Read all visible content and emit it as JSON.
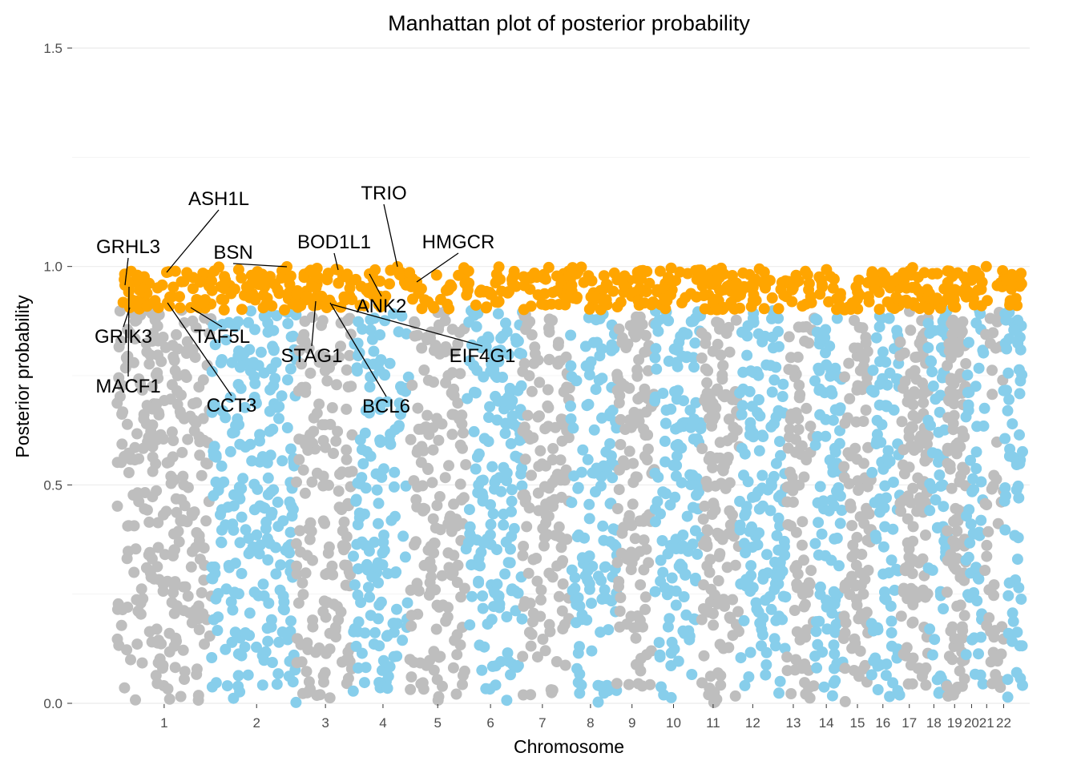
{
  "chart_data": {
    "type": "scatter",
    "title": "Manhattan plot of posterior probability",
    "xlabel": "Chromosome",
    "ylabel": "Posterior probability",
    "ylim": [
      0,
      1.5
    ],
    "yticks": [
      0.0,
      0.5,
      1.0,
      1.5
    ],
    "ytick_labels": [
      "0.0",
      "0.5",
      "1.0",
      "1.5"
    ],
    "grid": true,
    "legend": "none",
    "colors": {
      "odd": "#bebebe",
      "even": "#87ceeb",
      "highlight": "#ffa500"
    },
    "highlight_threshold": 0.9,
    "chromosomes": [
      {
        "label": "1",
        "start": 0.0,
        "end": 0.1,
        "center": 0.05,
        "n": 340
      },
      {
        "label": "2",
        "start": 0.1,
        "end": 0.19,
        "center": 0.148,
        "n": 300
      },
      {
        "label": "3",
        "start": 0.19,
        "end": 0.25,
        "center": 0.221,
        "n": 200
      },
      {
        "label": "4",
        "start": 0.25,
        "end": 0.31,
        "center": 0.282,
        "n": 180
      },
      {
        "label": "5",
        "start": 0.31,
        "end": 0.37,
        "center": 0.34,
        "n": 190
      },
      {
        "label": "6",
        "start": 0.37,
        "end": 0.43,
        "center": 0.396,
        "n": 200
      },
      {
        "label": "7",
        "start": 0.43,
        "end": 0.48,
        "center": 0.451,
        "n": 180
      },
      {
        "label": "8",
        "start": 0.48,
        "end": 0.53,
        "center": 0.502,
        "n": 160
      },
      {
        "label": "9",
        "start": 0.53,
        "end": 0.57,
        "center": 0.546,
        "n": 150
      },
      {
        "label": "10",
        "start": 0.57,
        "end": 0.62,
        "center": 0.59,
        "n": 170
      },
      {
        "label": "11",
        "start": 0.62,
        "end": 0.66,
        "center": 0.632,
        "n": 180
      },
      {
        "label": "12",
        "start": 0.66,
        "end": 0.71,
        "center": 0.674,
        "n": 180
      },
      {
        "label": "13",
        "start": 0.71,
        "end": 0.74,
        "center": 0.717,
        "n": 100
      },
      {
        "label": "14",
        "start": 0.74,
        "end": 0.77,
        "center": 0.752,
        "n": 110
      },
      {
        "label": "15",
        "start": 0.77,
        "end": 0.8,
        "center": 0.785,
        "n": 110
      },
      {
        "label": "16",
        "start": 0.8,
        "end": 0.83,
        "center": 0.812,
        "n": 120
      },
      {
        "label": "17",
        "start": 0.83,
        "end": 0.86,
        "center": 0.84,
        "n": 150
      },
      {
        "label": "18",
        "start": 0.86,
        "end": 0.88,
        "center": 0.866,
        "n": 80
      },
      {
        "label": "19",
        "start": 0.88,
        "end": 0.9,
        "center": 0.888,
        "n": 140
      },
      {
        "label": "20",
        "start": 0.9,
        "end": 0.92,
        "center": 0.906,
        "n": 70
      },
      {
        "label": "21",
        "start": 0.92,
        "end": 0.94,
        "center": 0.922,
        "n": 50
      },
      {
        "label": "22",
        "start": 0.94,
        "end": 0.96,
        "center": 0.94,
        "n": 80
      }
    ],
    "highlighted_genes": [
      {
        "gene": "GRHL3",
        "chrom": "1",
        "y": 0.96
      },
      {
        "gene": "GRIK3",
        "chrom": "1",
        "y": 0.91
      },
      {
        "gene": "MACF1",
        "chrom": "1",
        "y": 0.95
      },
      {
        "gene": "ASH1L",
        "chrom": "1",
        "y": 0.99
      },
      {
        "gene": "CCT3",
        "chrom": "1",
        "y": 0.92
      },
      {
        "gene": "TAF5L",
        "chrom": "1",
        "y": 0.91
      },
      {
        "gene": "BSN",
        "chrom": "3",
        "y": 1.0
      },
      {
        "gene": "BOD1L1",
        "chrom": "4",
        "y": 0.99
      },
      {
        "gene": "STAG1",
        "chrom": "3",
        "y": 0.94
      },
      {
        "gene": "BCL6",
        "chrom": "3",
        "y": 0.92
      },
      {
        "gene": "EIF4G1",
        "chrom": "3",
        "y": 0.92
      },
      {
        "gene": "ANK2",
        "chrom": "4",
        "y": 0.98
      },
      {
        "gene": "TRIO",
        "chrom": "5",
        "y": 1.0
      },
      {
        "gene": "HMGCR",
        "chrom": "5",
        "y": 0.96
      }
    ]
  }
}
